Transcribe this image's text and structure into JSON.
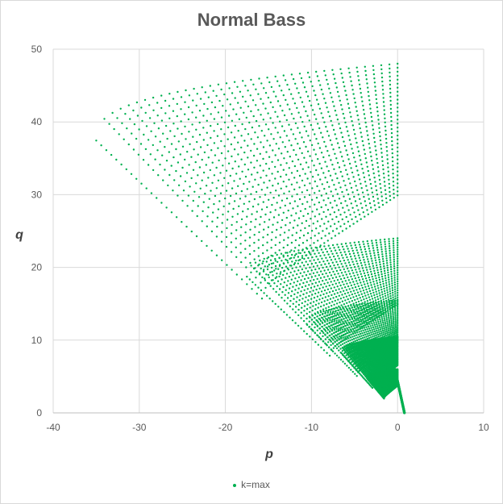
{
  "chart_data": {
    "type": "scatter",
    "title": "Normal Bass",
    "xlabel": "p",
    "ylabel": "q",
    "xlim": [
      -40,
      10
    ],
    "ylim": [
      0,
      50
    ],
    "xticks": [
      "-40",
      "-30",
      "-20",
      "-10",
      "0",
      "10"
    ],
    "yticks": [
      "0",
      "10",
      "20",
      "30",
      "40",
      "50"
    ],
    "grid": true,
    "legend_position": "bottom",
    "series": [
      {
        "name": "k=max",
        "color": "#00b050",
        "description_bands": [
          {
            "q_max": 48,
            "rows": 34,
            "cols": 38,
            "p_min_at_peak": -35
          },
          {
            "q_max": 24,
            "rows": 30,
            "cols": 36,
            "p_min_at_peak": -17.5
          },
          {
            "q_max": 15.5,
            "rows": 26,
            "cols": 34,
            "p_min_at_peak": -10.5
          },
          {
            "q_max": 10.5,
            "rows": 30,
            "cols": 40,
            "p_min_at_peak": -6.5
          },
          {
            "q_max": 6,
            "rows": 34,
            "cols": 44,
            "p_min_at_peak": -3.5
          }
        ]
      }
    ]
  }
}
